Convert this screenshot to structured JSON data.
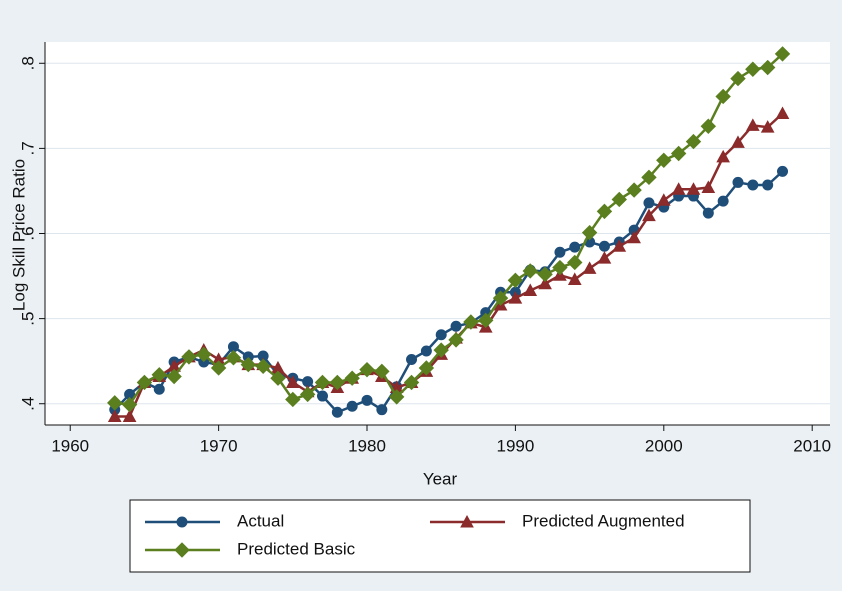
{
  "chart_data": {
    "type": "line",
    "x_label": "Year",
    "y_label": "Log Skill Price Ratio",
    "x": [
      1963,
      1964,
      1965,
      1966,
      1967,
      1968,
      1969,
      1970,
      1971,
      1972,
      1973,
      1974,
      1975,
      1976,
      1977,
      1978,
      1979,
      1980,
      1981,
      1982,
      1983,
      1984,
      1985,
      1986,
      1987,
      1988,
      1989,
      1990,
      1991,
      1992,
      1993,
      1994,
      1995,
      1996,
      1997,
      1998,
      1999,
      2000,
      2001,
      2002,
      2003,
      2004,
      2005,
      2006,
      2007,
      2008
    ],
    "series": [
      {
        "name": "Actual",
        "color": "#1f4e79",
        "marker": "circle",
        "values": [
          0.393,
          0.411,
          0.425,
          0.417,
          0.449,
          0.455,
          0.449,
          0.446,
          0.467,
          0.455,
          0.456,
          0.434,
          0.43,
          0.426,
          0.409,
          0.39,
          0.397,
          0.404,
          0.393,
          0.42,
          0.452,
          0.462,
          0.481,
          0.491,
          0.495,
          0.507,
          0.531,
          0.531,
          0.557,
          0.555,
          0.578,
          0.584,
          0.59,
          0.585,
          0.59,
          0.604,
          0.636,
          0.631,
          0.644,
          0.644,
          0.624,
          0.638,
          0.66,
          0.657,
          0.657,
          0.673
        ]
      },
      {
        "name": "Predicted Augmented",
        "color": "#8b2b2b",
        "marker": "triangle",
        "values": [
          0.385,
          0.385,
          0.425,
          0.432,
          0.444,
          0.455,
          0.463,
          0.452,
          0.455,
          0.446,
          0.446,
          0.442,
          0.425,
          0.414,
          0.425,
          0.419,
          0.43,
          0.44,
          0.432,
          0.419,
          0.425,
          0.438,
          0.458,
          0.477,
          0.495,
          0.49,
          0.516,
          0.524,
          0.533,
          0.541,
          0.551,
          0.546,
          0.559,
          0.571,
          0.585,
          0.595,
          0.621,
          0.639,
          0.652,
          0.652,
          0.654,
          0.69,
          0.707,
          0.727,
          0.725,
          0.741
        ]
      },
      {
        "name": "Predicted Basic",
        "color": "#5b7f1f",
        "marker": "diamond",
        "values": [
          0.401,
          0.399,
          0.425,
          0.434,
          0.432,
          0.455,
          0.458,
          0.442,
          0.454,
          0.446,
          0.444,
          0.43,
          0.405,
          0.411,
          0.425,
          0.425,
          0.43,
          0.44,
          0.438,
          0.408,
          0.425,
          0.442,
          0.463,
          0.475,
          0.496,
          0.498,
          0.524,
          0.545,
          0.556,
          0.552,
          0.56,
          0.566,
          0.601,
          0.626,
          0.64,
          0.651,
          0.666,
          0.686,
          0.694,
          0.708,
          0.726,
          0.761,
          0.782,
          0.793,
          0.795,
          0.811
        ]
      }
    ],
    "xlim": [
      1958.3,
      2011.2
    ],
    "xticks": [
      1960,
      1970,
      1980,
      1990,
      2000,
      2010
    ],
    "ylim": [
      0.375,
      0.825
    ],
    "yticks": [
      {
        "value": 0.4,
        "label": ".4"
      },
      {
        "value": 0.5,
        "label": ".5"
      },
      {
        "value": 0.6,
        "label": ".6"
      },
      {
        "value": 0.7,
        "label": ".7"
      },
      {
        "value": 0.8,
        "label": ".8"
      }
    ],
    "grid": true,
    "legend_position": "bottom"
  }
}
